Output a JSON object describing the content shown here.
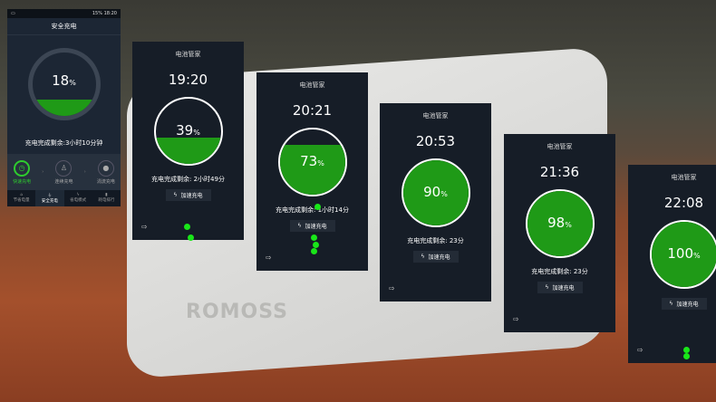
{
  "scene": {
    "brand": "ROMOSS"
  },
  "first": {
    "status_battery": "15%",
    "status_time": "18:20",
    "title": "安全充电",
    "percent": 18,
    "percent_unit": "%",
    "remaining": "充电完成剩余:3小时10分钟",
    "steps": [
      {
        "label": "快速充电",
        "icon": "clock-icon",
        "active": true
      },
      {
        "label": "连续充电",
        "icon": "bell-icon",
        "active": false
      },
      {
        "label": "涓流充电",
        "icon": "drop-icon",
        "active": false
      }
    ],
    "nav": [
      {
        "label": "节省电量",
        "icon": "home-icon"
      },
      {
        "label": "安全充电",
        "icon": "plug-icon",
        "active": true
      },
      {
        "label": "省电模式",
        "icon": "bolt-icon"
      },
      {
        "label": "耗电排行",
        "icon": "bars-icon"
      }
    ]
  },
  "colors": {
    "accent": "#1f9a17",
    "panel": "#161d27"
  },
  "panels": [
    {
      "header": "电池管家",
      "time": "19:20",
      "percent": 39,
      "percent_unit": "%",
      "remaining": "充电完成剩余: 2小时49分",
      "boost": "加速充电"
    },
    {
      "header": "电池管家",
      "time": "20:21",
      "percent": 73,
      "percent_unit": "%",
      "remaining": "充电完成剩余: 1小时14分",
      "boost": "加速充电"
    },
    {
      "header": "电池管家",
      "time": "20:53",
      "percent": 90,
      "percent_unit": "%",
      "remaining": "充电完成剩余: 23分",
      "boost": "加速充电"
    },
    {
      "header": "电池管家",
      "time": "21:36",
      "percent": 98,
      "percent_unit": "%",
      "remaining": "充电完成剩余: 23分",
      "boost": "加速充电"
    },
    {
      "header": "电池管家",
      "time": "22:08",
      "percent": 100,
      "percent_unit": "%",
      "remaining": "",
      "boost": "加速充电"
    }
  ]
}
